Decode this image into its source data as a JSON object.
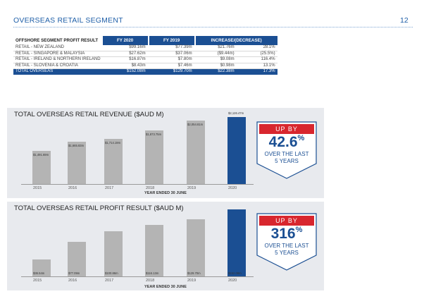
{
  "header": {
    "title": "OVERSEAS RETAIL SEGMENT",
    "page_number": "12"
  },
  "table": {
    "title": "OFFSHORE SEGMENT PROFIT RESULT",
    "columns": [
      "FY 2020",
      "FY 2019",
      "INCREASE/(DECREASE)"
    ],
    "rows": [
      {
        "label": "RETAIL - NEW ZEALAND",
        "fy2020": "$99.16m",
        "fy2019": "$77.39m",
        "change": "$21.76m",
        "pct": "28.1%"
      },
      {
        "label": "RETAIL - SINGAPORE & MALAYSIA",
        "fy2020": "$27.62m",
        "fy2019": "$37.06m",
        "change": "($9.44m)",
        "pct": "(25.5%)"
      },
      {
        "label": "RETAIL - IRELAND & NORTHERN IRELAND",
        "fy2020": "$16.87m",
        "fy2019": "$7.80m",
        "change": "$9.08m",
        "pct": "116.4%"
      },
      {
        "label": "RETAIL - SLOVENIA & CROATIA",
        "fy2020": "$8.43m",
        "fy2019": "$7.46m",
        "change": "$0.98m",
        "pct": "13.1%"
      }
    ],
    "total": {
      "label": "TOTAL OVERSEAS",
      "fy2020": "$152.08m",
      "fy2019": "$129.70m",
      "change": "$22.38m",
      "pct": "17.3%"
    }
  },
  "chart_data": [
    {
      "type": "bar",
      "title": "TOTAL OVERSEAS RETAIL REVENUE ($AUD M)",
      "xlabel": "YEAR ENDED 30 JUNE",
      "categories": [
        "2015",
        "2016",
        "2017",
        "2018",
        "2019",
        "2020"
      ],
      "values": [
        1491.69,
        1665.83,
        1714.19,
        1873.75,
        2054.81,
        2126.47
      ],
      "value_labels": [
        "$1,491.69m",
        "$1,665.83m",
        "$1,714.19m",
        "$1,873.75m",
        "$2,054.81m",
        "$2,126.47m"
      ],
      "highlight_color": "#1b4f93",
      "bar_color": "#b4b4b4",
      "badge": {
        "top": "UP BY",
        "pct_number": "42.6",
        "pct_sign": "%",
        "line1": "OVER THE LAST",
        "line2": "5 YEARS"
      }
    },
    {
      "type": "bar",
      "title": "TOTAL OVERSEAS RETAIL PROFIT RESULT ($AUD M)",
      "xlabel": "YEAR ENDED 30 JUNE",
      "categories": [
        "2015",
        "2016",
        "2017",
        "2018",
        "2019",
        "2020"
      ],
      "values": [
        36.54,
        77.09,
        100.86,
        116.13,
        129.7,
        152.08
      ],
      "value_labels": [
        "$36.54m",
        "$77.09m",
        "$100.86m",
        "$116.13m",
        "$129.70m",
        "$152.08m"
      ],
      "highlight_color": "#1b4f93",
      "bar_color": "#b4b4b4",
      "badge": {
        "top": "UP BY",
        "pct_number": "316",
        "pct_sign": "%",
        "line1": "OVER THE LAST",
        "line2": "5 YEARS"
      }
    }
  ]
}
